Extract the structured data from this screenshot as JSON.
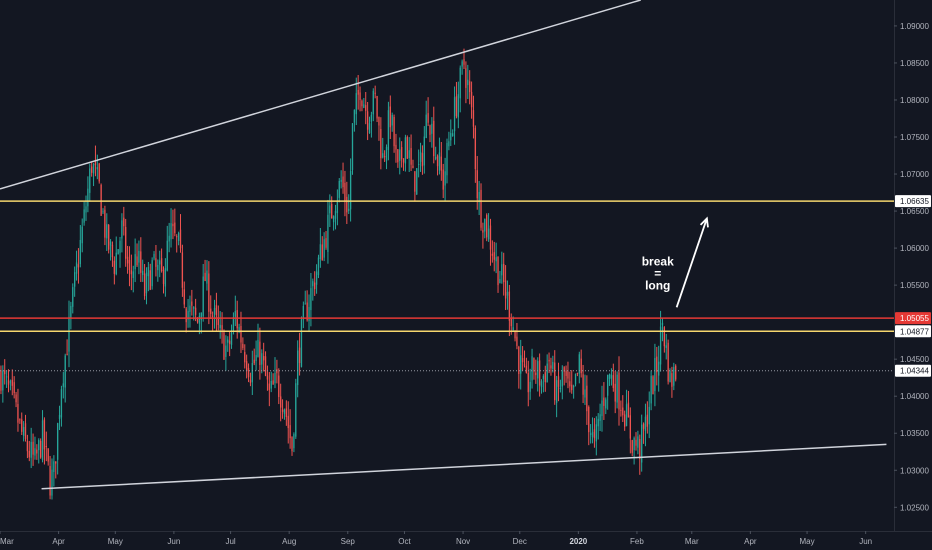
{
  "chart_data": {
    "type": "candlestick",
    "title": "",
    "xlabel": "",
    "ylabel": "",
    "ylim": [
      1.0218,
      1.0935
    ],
    "grid": false,
    "colors": {
      "background": "#131722",
      "up": "#26a69a",
      "down": "#ef5350",
      "support_resistance": "#f5d76e",
      "key_level": "#e53935",
      "trendline": "#d1d4dc",
      "last_price": "#9598a1"
    },
    "y_ticks": [
      "1.09000",
      "1.08500",
      "1.08000",
      "1.07500",
      "1.07000",
      "1.06500",
      "1.06000",
      "1.05500",
      "1.04500",
      "1.04000",
      "1.03500",
      "1.03000",
      "1.02500"
    ],
    "x_ticks": [
      {
        "label": "Mar",
        "day": 0,
        "bold": false
      },
      {
        "label": "Apr",
        "day": 31,
        "bold": false
      },
      {
        "label": "May",
        "day": 61,
        "bold": false
      },
      {
        "label": "Jun",
        "day": 92,
        "bold": false
      },
      {
        "label": "Jul",
        "day": 122,
        "bold": false
      },
      {
        "label": "Aug",
        "day": 153,
        "bold": false
      },
      {
        "label": "Sep",
        "day": 184,
        "bold": false
      },
      {
        "label": "Oct",
        "day": 214,
        "bold": false
      },
      {
        "label": "Nov",
        "day": 245,
        "bold": false
      },
      {
        "label": "Dec",
        "day": 275,
        "bold": false
      },
      {
        "label": "2020",
        "day": 306,
        "bold": true
      },
      {
        "label": "Feb",
        "day": 337,
        "bold": false
      },
      {
        "label": "Mar",
        "day": 366,
        "bold": false
      },
      {
        "label": "Apr",
        "day": 397,
        "bold": false
      },
      {
        "label": "May",
        "day": 427,
        "bold": false
      },
      {
        "label": "Jun",
        "day": 458,
        "bold": false
      }
    ],
    "x_range_days": [
      0,
      473
    ],
    "price_path": [
      [
        0,
        1.043
      ],
      [
        6,
        1.0395
      ],
      [
        12,
        1.034
      ],
      [
        18,
        1.031
      ],
      [
        22,
        1.0345
      ],
      [
        26,
        1.0285
      ],
      [
        28,
        1.0295
      ],
      [
        32,
        1.042
      ],
      [
        36,
        1.049
      ],
      [
        40,
        1.057
      ],
      [
        44,
        1.064
      ],
      [
        48,
        1.0715
      ],
      [
        52,
        1.068
      ],
      [
        56,
        1.061
      ],
      [
        60,
        1.058
      ],
      [
        64,
        1.0625
      ],
      [
        68,
        1.056
      ],
      [
        72,
        1.059
      ],
      [
        76,
        1.054
      ],
      [
        80,
        1.0575
      ],
      [
        85,
        1.056
      ],
      [
        90,
        1.062
      ],
      [
        94,
        1.06
      ],
      [
        98,
        1.052
      ],
      [
        104,
        1.05
      ],
      [
        108,
        1.056
      ],
      [
        112,
        1.051
      ],
      [
        116,
        1.048
      ],
      [
        120,
        1.046
      ],
      [
        124,
        1.051
      ],
      [
        128,
        1.047
      ],
      [
        132,
        1.0435
      ],
      [
        137,
        1.046
      ],
      [
        142,
        1.04
      ],
      [
        146,
        1.042
      ],
      [
        150,
        1.039
      ],
      [
        154,
        1.033
      ],
      [
        157,
        1.045
      ],
      [
        160,
        1.05
      ],
      [
        164,
        1.054
      ],
      [
        168,
        1.058
      ],
      [
        172,
        1.062
      ],
      [
        176,
        1.066
      ],
      [
        180,
        1.069
      ],
      [
        184,
        1.065
      ],
      [
        186,
        1.076
      ],
      [
        190,
        1.082
      ],
      [
        194,
        1.078
      ],
      [
        198,
        1.08
      ],
      [
        202,
        1.072
      ],
      [
        206,
        1.078
      ],
      [
        210,
        1.07
      ],
      [
        214,
        1.075
      ],
      [
        218,
        1.069
      ],
      [
        222,
        1.071
      ],
      [
        226,
        1.079
      ],
      [
        230,
        1.073
      ],
      [
        234,
        1.069
      ],
      [
        238,
        1.076
      ],
      [
        242,
        1.081
      ],
      [
        245,
        1.085
      ],
      [
        247,
        1.082
      ],
      [
        250,
        1.076
      ],
      [
        252,
        1.068
      ],
      [
        254,
        1.065
      ],
      [
        258,
        1.062
      ],
      [
        262,
        1.058
      ],
      [
        266,
        1.055
      ],
      [
        270,
        1.051
      ],
      [
        274,
        1.045
      ],
      [
        278,
        1.041
      ],
      [
        282,
        1.044
      ],
      [
        286,
        1.042
      ],
      [
        290,
        1.045
      ],
      [
        294,
        1.04
      ],
      [
        298,
        1.043
      ],
      [
        302,
        1.039
      ],
      [
        306,
        1.044
      ],
      [
        310,
        1.038
      ],
      [
        314,
        1.033
      ],
      [
        318,
        1.039
      ],
      [
        322,
        1.043
      ],
      [
        326,
        1.041
      ],
      [
        330,
        1.038
      ],
      [
        334,
        1.034
      ],
      [
        338,
        1.033
      ],
      [
        341,
        1.036
      ],
      [
        344,
        1.041
      ],
      [
        347,
        1.044
      ],
      [
        350,
        1.05
      ],
      [
        352,
        1.046
      ],
      [
        354,
        1.042
      ],
      [
        357,
        1.0434
      ]
    ],
    "horizontal_levels": [
      {
        "label": "1.06635",
        "value": 1.06635,
        "role": "support_resistance"
      },
      {
        "label": "1.05055",
        "value": 1.05055,
        "role": "key_level"
      },
      {
        "label": "1.04877",
        "value": 1.04877,
        "role": "support_resistance"
      }
    ],
    "last_price": {
      "label": "1.04344",
      "value": 1.04344
    },
    "trendlines": [
      {
        "name": "upper",
        "points": [
          [
            0,
            1.068
          ],
          [
            339,
            1.0935
          ]
        ]
      },
      {
        "name": "lower",
        "points": [
          [
            22,
            1.0275
          ],
          [
            469,
            1.0335
          ]
        ]
      }
    ],
    "annotation": {
      "lines": [
        "break",
        "=",
        "long"
      ],
      "day": 348,
      "value": 1.0555
    },
    "arrow": {
      "from": [
        358,
        1.052
      ],
      "to": [
        374,
        1.064
      ]
    }
  }
}
